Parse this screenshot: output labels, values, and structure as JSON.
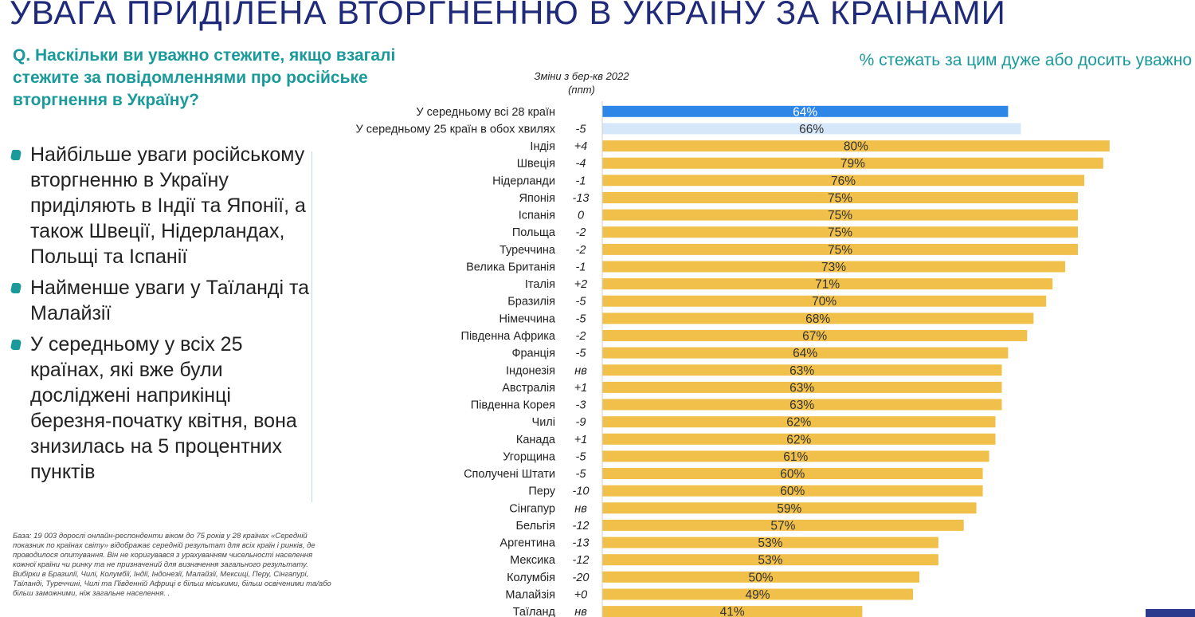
{
  "title": "УВАГА ПРИДІЛЕНА ВТОРГНЕННЮ В УКРАЇНУ ЗА КРАЇНАМИ",
  "question": "Q. Наскільки ви уважно стежите, якщо взагалі стежите за повідомленнями про російське вторгнення в Україну?",
  "subtitle": "% стежать за цим дуже або досить уважно",
  "change_header": "Зміни з бер-кв 2022 (ппт)",
  "bullets": [
    "Найбільше уваги російському вторгненню в Україну приділяють в Індії та Японії, а також Швеції, Нідерландах, Польщі та Іспанії",
    "Найменше уваги у Таїланді та Малайзії",
    "У середньому у всіх 25 країнах, які вже були досліджені наприкінці березня-початку квітня, вона знизилась на 5 процентних пунктів"
  ],
  "footnote": {
    "base": "База: 19 003 дорослі онлайн-респонденти віком до 75 років у 28 країнах «Середній показник по країнах світу» відображає середній результат для всіх країн і ринків, де проводилося опитування. Він не коригувався з урахуванням чисельності населення кожної країни чи ринку та не призначений для визначення загального результату.",
    "samples": "Вибірки в Бразилії, Чилі, Колумбії, Індії, Індонезії, Малайзії, Мексиці, Перу, Сінгапурі, Таїланді, Туреччині, Чилі та Південній Африці є більш міськими, більш освіченими та/або більш заможними, ніж загальне населення. ."
  },
  "colors": {
    "title": "#1f2a7a",
    "teal": "#1a9a9a",
    "bar_country": "#f0c04a",
    "bar_avg28": "#2e86e6",
    "bar_avg25": "#d6e7fa"
  },
  "chart_data": {
    "type": "bar",
    "orientation": "horizontal",
    "categories": [
      "У середньому всі 28 країн",
      "У середньому 25 країн в обох хвилях",
      "Індія",
      "Швеція",
      "Нідерланди",
      "Японія",
      "Іспанія",
      "Польща",
      "Туреччина",
      "Велика Британія",
      "Італія",
      "Бразилія",
      "Німеччина",
      "Південна Африка",
      "Франція",
      "Індонезія",
      "Австралія",
      "Південна Корея",
      "Чилі",
      "Канада",
      "Угорщина",
      "Сполучені Штати",
      "Перу",
      "Сінгапур",
      "Бельгія",
      "Аргентина",
      "Мексика",
      "Колумбія",
      "Малайзія",
      "Таїланд"
    ],
    "values": [
      64,
      66,
      80,
      79,
      76,
      75,
      75,
      75,
      75,
      73,
      71,
      70,
      68,
      67,
      64,
      63,
      63,
      63,
      62,
      62,
      61,
      60,
      60,
      59,
      57,
      53,
      53,
      50,
      49,
      41
    ],
    "value_labels": [
      "64%",
      "66%",
      "80%",
      "79%",
      "76%",
      "75%",
      "75%",
      "75%",
      "75%",
      "73%",
      "71%",
      "70%",
      "68%",
      "67%",
      "64%",
      "63%",
      "63%",
      "63%",
      "62%",
      "62%",
      "61%",
      "60%",
      "60%",
      "59%",
      "57%",
      "53%",
      "53%",
      "50%",
      "49%",
      "41%"
    ],
    "changes": [
      "",
      "-5",
      "+4",
      "-4",
      "-1",
      "-13",
      "0",
      "-2",
      "-2",
      "-1",
      "+2",
      "-5",
      "-5",
      "-2",
      "-5",
      "нв",
      "+1",
      "-3",
      "-9",
      "+1",
      "-5",
      "-5",
      "-10",
      "нв",
      "-12",
      "-13",
      "-12",
      "-20",
      "+0",
      "нв"
    ],
    "bar_kinds": [
      "avg28",
      "avg25",
      "country",
      "country",
      "country",
      "country",
      "country",
      "country",
      "country",
      "country",
      "country",
      "country",
      "country",
      "country",
      "country",
      "country",
      "country",
      "country",
      "country",
      "country",
      "country",
      "country",
      "country",
      "country",
      "country",
      "country",
      "country",
      "country",
      "country",
      "country"
    ],
    "xlim": [
      0,
      80
    ],
    "grid": false,
    "legend": "none"
  }
}
